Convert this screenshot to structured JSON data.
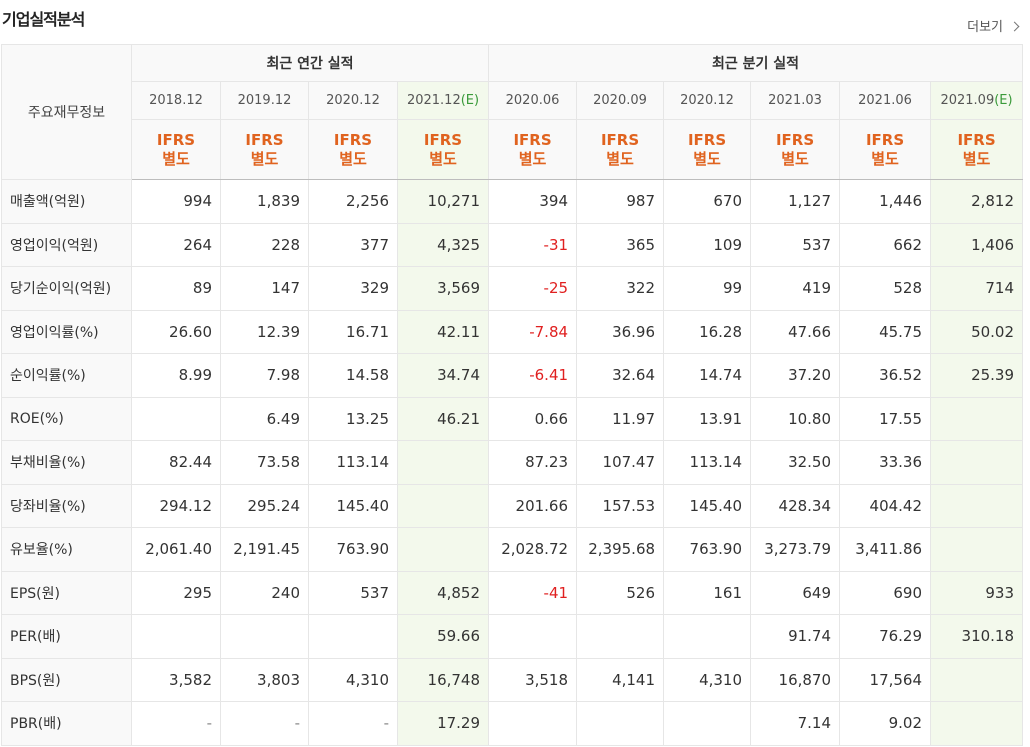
{
  "header": {
    "title": "기업실적분석",
    "more": "더보기"
  },
  "table": {
    "row_header": "주요재무정보",
    "groups": [
      {
        "label": "최근 연간 실적",
        "periods": [
          {
            "date": "2018.12",
            "standard": "IFRS",
            "scope": "별도"
          },
          {
            "date": "2019.12",
            "standard": "IFRS",
            "scope": "별도"
          },
          {
            "date": "2020.12",
            "standard": "IFRS",
            "scope": "별도"
          },
          {
            "date": "2021.12",
            "estimate": "(E)",
            "standard": "IFRS",
            "scope": "별도"
          }
        ]
      },
      {
        "label": "최근 분기 실적",
        "periods": [
          {
            "date": "2020.06",
            "standard": "IFRS",
            "scope": "별도"
          },
          {
            "date": "2020.09",
            "standard": "IFRS",
            "scope": "별도"
          },
          {
            "date": "2020.12",
            "standard": "IFRS",
            "scope": "별도"
          },
          {
            "date": "2021.03",
            "standard": "IFRS",
            "scope": "별도"
          },
          {
            "date": "2021.06",
            "standard": "IFRS",
            "scope": "별도"
          },
          {
            "date": "2021.09",
            "estimate": "(E)",
            "standard": "IFRS",
            "scope": "별도"
          }
        ]
      }
    ],
    "rows": [
      {
        "label": "매출액(억원)",
        "values": [
          "994",
          "1,839",
          "2,256",
          "10,271",
          "394",
          "987",
          "670",
          "1,127",
          "1,446",
          "2,812"
        ]
      },
      {
        "label": "영업이익(억원)",
        "values": [
          "264",
          "228",
          "377",
          "4,325",
          "-31",
          "365",
          "109",
          "537",
          "662",
          "1,406"
        ]
      },
      {
        "label": "당기순이익(억원)",
        "values": [
          "89",
          "147",
          "329",
          "3,569",
          "-25",
          "322",
          "99",
          "419",
          "528",
          "714"
        ]
      },
      {
        "label": "영업이익률(%)",
        "values": [
          "26.60",
          "12.39",
          "16.71",
          "42.11",
          "-7.84",
          "36.96",
          "16.28",
          "47.66",
          "45.75",
          "50.02"
        ]
      },
      {
        "label": "순이익률(%)",
        "values": [
          "8.99",
          "7.98",
          "14.58",
          "34.74",
          "-6.41",
          "32.64",
          "14.74",
          "37.20",
          "36.52",
          "25.39"
        ]
      },
      {
        "label": "ROE(%)",
        "values": [
          null,
          "6.49",
          "13.25",
          "46.21",
          "0.66",
          "11.97",
          "13.91",
          "10.80",
          "17.55",
          null
        ]
      },
      {
        "label": "부채비율(%)",
        "values": [
          "82.44",
          "73.58",
          "113.14",
          null,
          "87.23",
          "107.47",
          "113.14",
          "32.50",
          "33.36",
          null
        ]
      },
      {
        "label": "당좌비율(%)",
        "values": [
          "294.12",
          "295.24",
          "145.40",
          null,
          "201.66",
          "157.53",
          "145.40",
          "428.34",
          "404.42",
          null
        ]
      },
      {
        "label": "유보율(%)",
        "values": [
          "2,061.40",
          "2,191.45",
          "763.90",
          null,
          "2,028.72",
          "2,395.68",
          "763.90",
          "3,273.79",
          "3,411.86",
          null
        ]
      },
      {
        "label": "EPS(원)",
        "values": [
          "295",
          "240",
          "537",
          "4,852",
          "-41",
          "526",
          "161",
          "649",
          "690",
          "933"
        ]
      },
      {
        "label": "PER(배)",
        "values": [
          null,
          null,
          null,
          "59.66",
          null,
          null,
          null,
          "91.74",
          "76.29",
          "310.18"
        ]
      },
      {
        "label": "BPS(원)",
        "values": [
          "3,582",
          "3,803",
          "4,310",
          "16,748",
          "3,518",
          "4,141",
          "4,310",
          "16,870",
          "17,564",
          null
        ]
      },
      {
        "label": "PBR(배)",
        "values": [
          "-",
          "-",
          "-",
          "17.29",
          null,
          null,
          null,
          "7.14",
          "9.02",
          null
        ]
      }
    ],
    "group_starts": [
      3,
      6,
      9
    ]
  }
}
